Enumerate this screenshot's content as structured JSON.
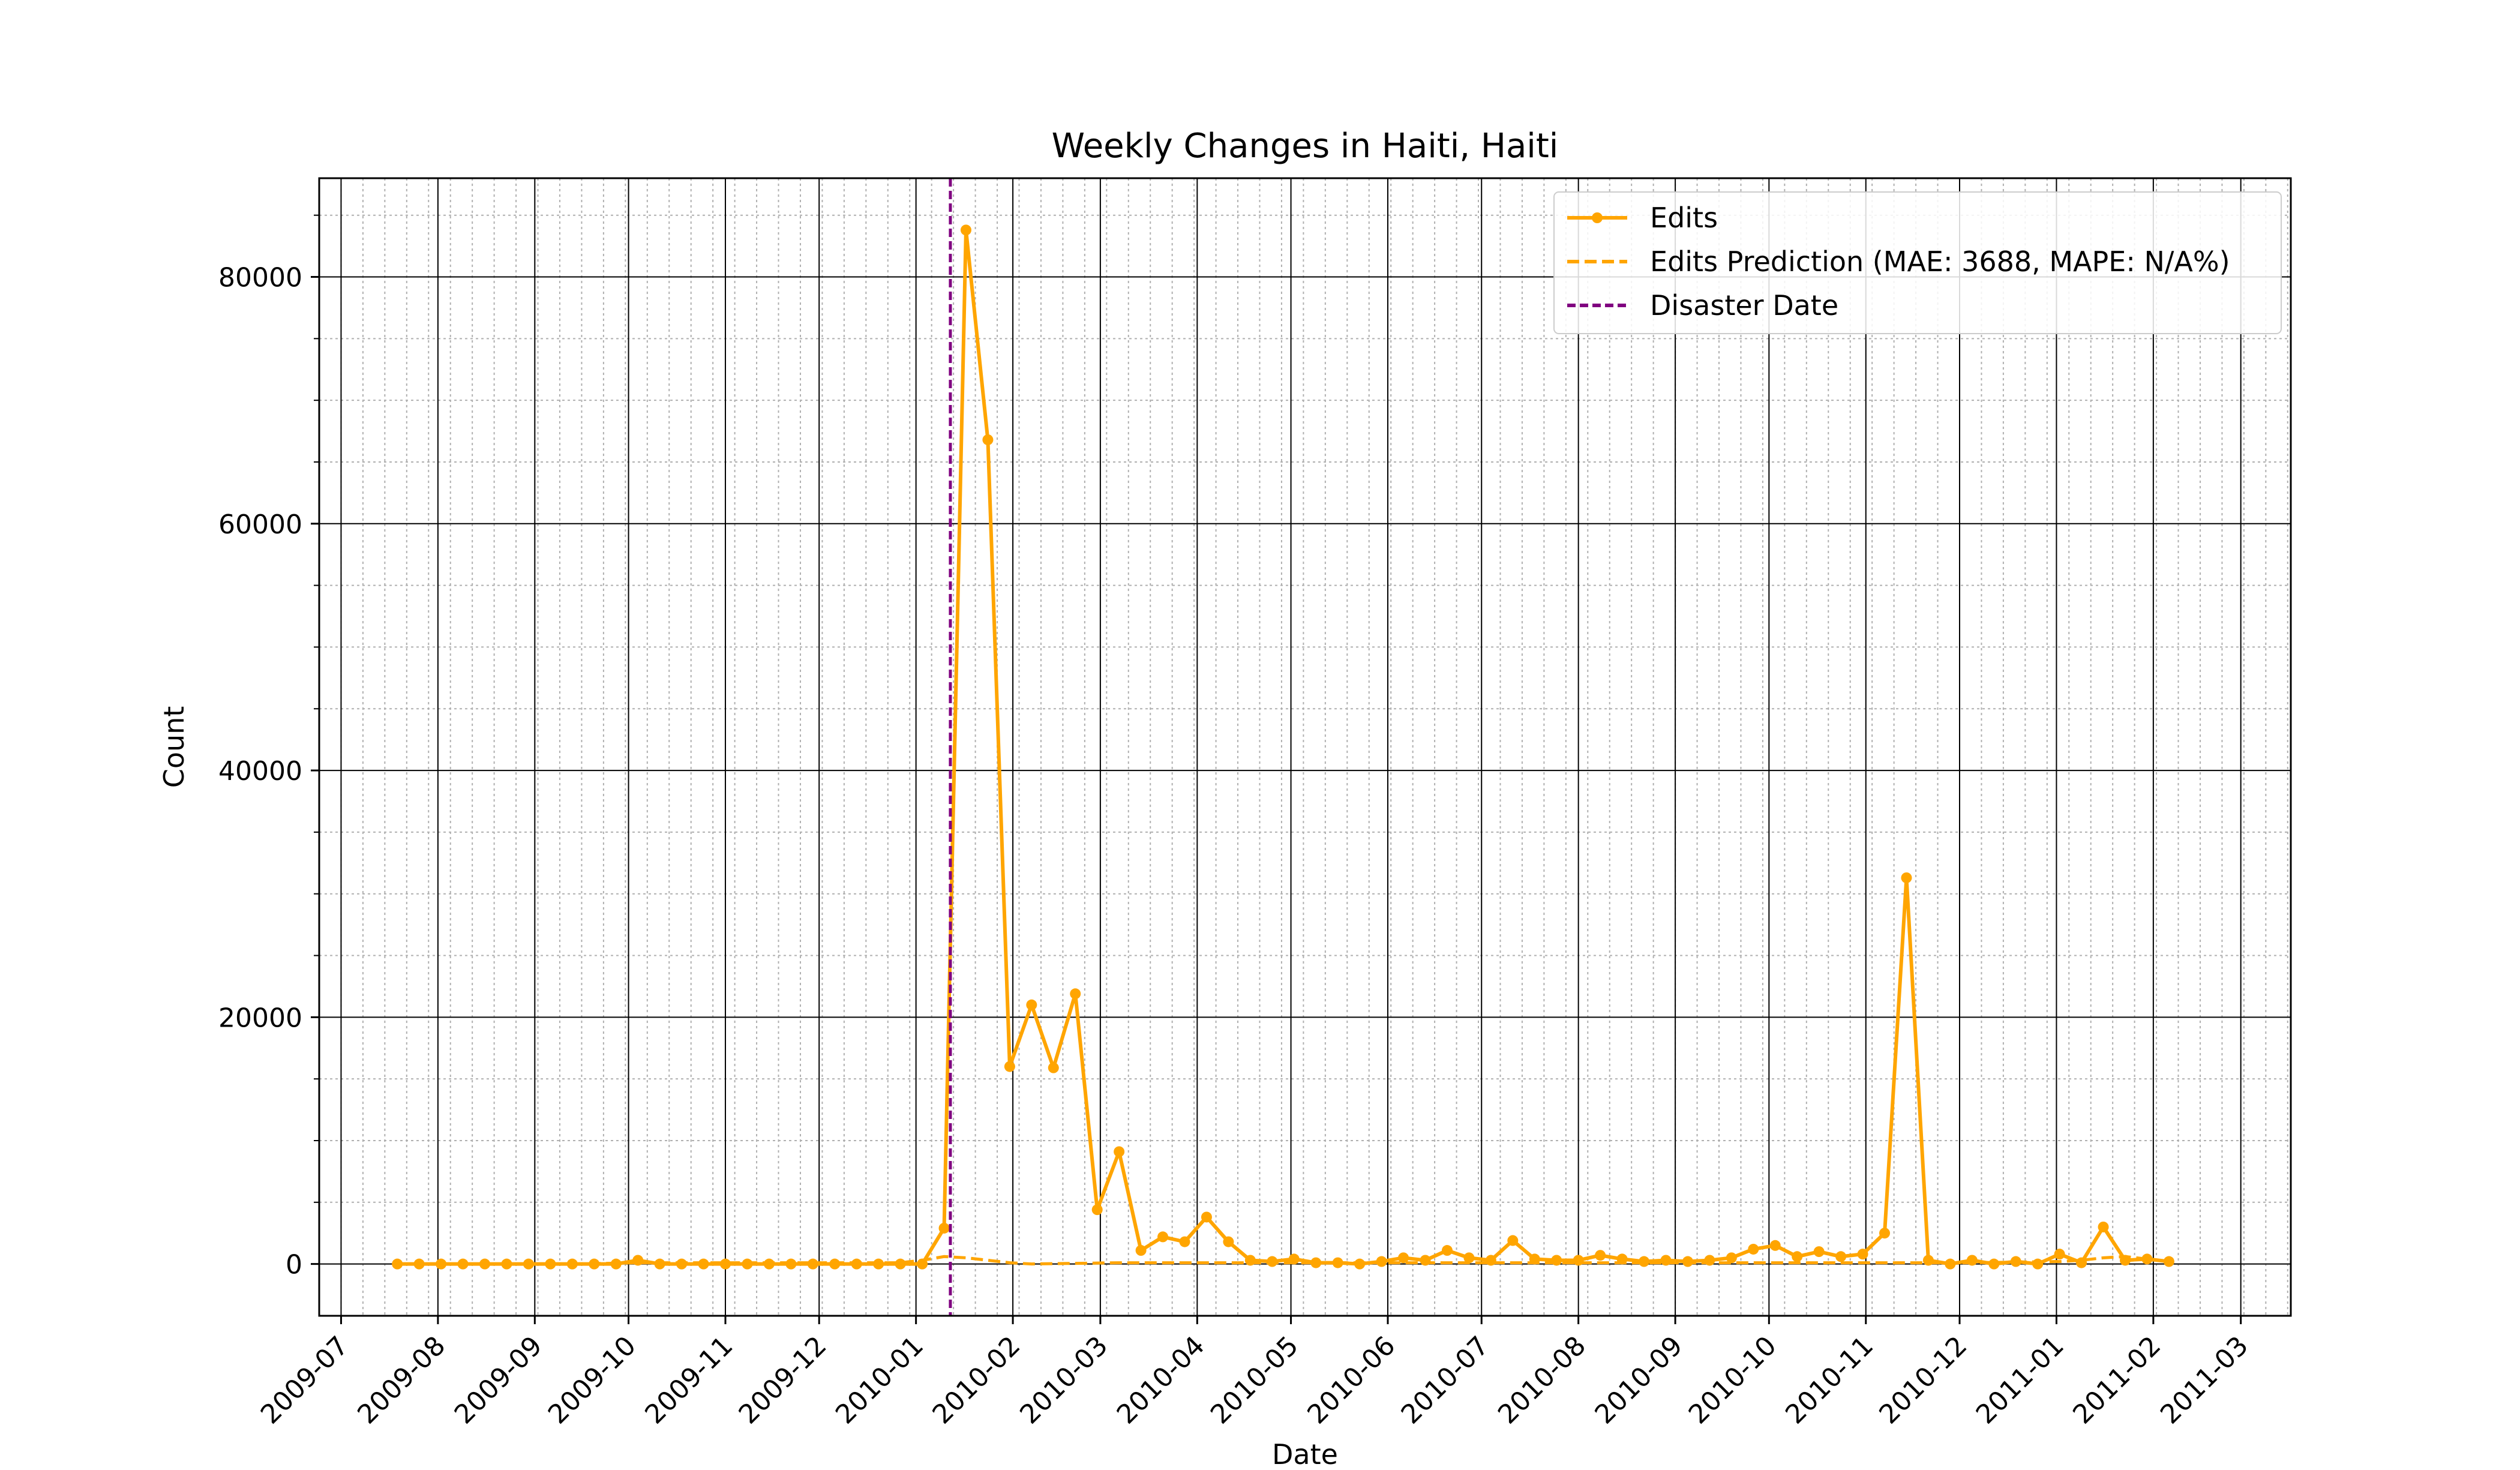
{
  "chart_data": {
    "type": "line",
    "title": "Weekly Changes in Haiti, Haiti",
    "xlabel": "Date",
    "ylabel": "Count",
    "xlim": [
      "2009-06-24",
      "2011-03-17"
    ],
    "ylim": [
      -4200,
      88000
    ],
    "x_tick_labels": [
      "2009-07",
      "2009-08",
      "2009-09",
      "2009-10",
      "2009-11",
      "2009-12",
      "2010-01",
      "2010-02",
      "2010-03",
      "2010-04",
      "2010-05",
      "2010-06",
      "2010-07",
      "2010-08",
      "2010-09",
      "2010-10",
      "2010-11",
      "2010-12",
      "2011-01",
      "2011-02",
      "2011-03"
    ],
    "y_ticks": [
      0,
      20000,
      40000,
      60000,
      80000
    ],
    "y_tick_labels": [
      "0",
      "20000",
      "40000",
      "60000",
      "80000"
    ],
    "grid": true,
    "legend_position": "top-right",
    "series": [
      {
        "name": "Edits",
        "color": "#FFA500",
        "style": "solid-with-markers",
        "x": [
          "2009-07-19",
          "2009-07-26",
          "2009-08-02",
          "2009-08-09",
          "2009-08-16",
          "2009-08-23",
          "2009-08-30",
          "2009-09-06",
          "2009-09-13",
          "2009-09-20",
          "2009-09-27",
          "2009-10-04",
          "2009-10-11",
          "2009-10-18",
          "2009-10-25",
          "2009-11-01",
          "2009-11-08",
          "2009-11-15",
          "2009-11-22",
          "2009-11-29",
          "2009-12-06",
          "2009-12-13",
          "2009-12-20",
          "2009-12-27",
          "2010-01-03",
          "2010-01-10",
          "2010-01-17",
          "2010-01-24",
          "2010-01-31",
          "2010-02-07",
          "2010-02-14",
          "2010-02-21",
          "2010-02-28",
          "2010-03-07",
          "2010-03-14",
          "2010-03-21",
          "2010-03-28",
          "2010-04-04",
          "2010-04-11",
          "2010-04-18",
          "2010-04-25",
          "2010-05-02",
          "2010-05-09",
          "2010-05-16",
          "2010-05-23",
          "2010-05-30",
          "2010-06-06",
          "2010-06-13",
          "2010-06-20",
          "2010-06-27",
          "2010-07-04",
          "2010-07-11",
          "2010-07-18",
          "2010-07-25",
          "2010-08-01",
          "2010-08-08",
          "2010-08-15",
          "2010-08-22",
          "2010-08-29",
          "2010-09-05",
          "2010-09-12",
          "2010-09-19",
          "2010-09-26",
          "2010-10-03",
          "2010-10-10",
          "2010-10-17",
          "2010-10-24",
          "2010-10-31",
          "2010-11-07",
          "2010-11-14",
          "2010-11-21",
          "2010-11-28",
          "2010-12-05",
          "2010-12-12",
          "2010-12-19",
          "2010-12-26",
          "2011-01-02",
          "2011-01-09",
          "2011-01-16",
          "2011-01-23",
          "2011-01-30",
          "2011-02-06"
        ],
        "values": [
          0,
          0,
          0,
          0,
          0,
          0,
          0,
          0,
          0,
          0,
          0,
          300,
          0,
          0,
          0,
          0,
          0,
          0,
          0,
          0,
          0,
          0,
          0,
          0,
          0,
          2900,
          83800,
          66800,
          16000,
          21000,
          15900,
          21900,
          4400,
          9100,
          1100,
          2200,
          1800,
          3800,
          1800,
          300,
          200,
          400,
          100,
          100,
          0,
          200,
          500,
          300,
          1100,
          500,
          300,
          1900,
          400,
          300,
          300,
          700,
          400,
          200,
          300,
          200,
          300,
          500,
          1200,
          1500,
          600,
          1000,
          600,
          800,
          2500,
          31300,
          300,
          0,
          300,
          0,
          200,
          0,
          800,
          100,
          3000,
          300,
          400,
          200
        ],
        "marker_values": [
          0,
          0,
          0,
          0,
          0,
          0,
          0,
          0,
          0,
          0,
          0,
          300,
          0,
          0,
          0,
          0,
          0,
          0,
          0,
          0,
          0,
          0,
          0,
          0,
          0,
          2900,
          83800,
          66800,
          16000,
          21000,
          15900,
          21900,
          4400,
          9100,
          1100,
          2200,
          1800,
          3800,
          1800,
          300,
          200,
          400,
          100,
          100,
          0,
          200,
          500,
          300,
          1100,
          500,
          300,
          1900,
          400,
          300,
          300,
          700,
          400,
          200,
          300,
          200,
          300,
          500,
          1200,
          1500,
          600,
          1000,
          600,
          800,
          2500,
          31300,
          300,
          0,
          300,
          0,
          200,
          0,
          800,
          100,
          3000,
          300,
          400,
          200
        ]
      },
      {
        "name": "Edits Prediction (MAE: 3688, MAPE: N/A%)",
        "color": "#FFA500",
        "style": "dashed",
        "x": [
          "2009-07-19",
          "2009-08-16",
          "2009-09-13",
          "2009-10-04",
          "2009-10-18",
          "2009-11-15",
          "2009-12-13",
          "2009-12-27",
          "2010-01-03",
          "2010-01-10",
          "2010-01-17",
          "2010-01-24",
          "2010-01-31",
          "2010-02-07",
          "2010-03-07",
          "2010-04-04",
          "2010-05-02",
          "2010-06-06",
          "2010-07-04",
          "2010-08-01",
          "2010-09-05",
          "2010-10-03",
          "2010-11-07",
          "2010-12-05",
          "2011-01-02",
          "2011-01-09",
          "2011-01-16",
          "2011-01-23",
          "2011-01-30",
          "2011-02-06"
        ],
        "values": [
          0,
          0,
          0,
          100,
          100,
          100,
          100,
          100,
          300,
          600,
          500,
          300,
          100,
          0,
          100,
          100,
          100,
          100,
          100,
          100,
          100,
          100,
          100,
          100,
          200,
          300,
          500,
          600,
          400,
          200
        ]
      }
    ],
    "annotations": [
      {
        "name": "Disaster Date",
        "type": "vertical-line",
        "x": "2010-01-12",
        "color": "#800080",
        "style": "dashed"
      }
    ]
  }
}
